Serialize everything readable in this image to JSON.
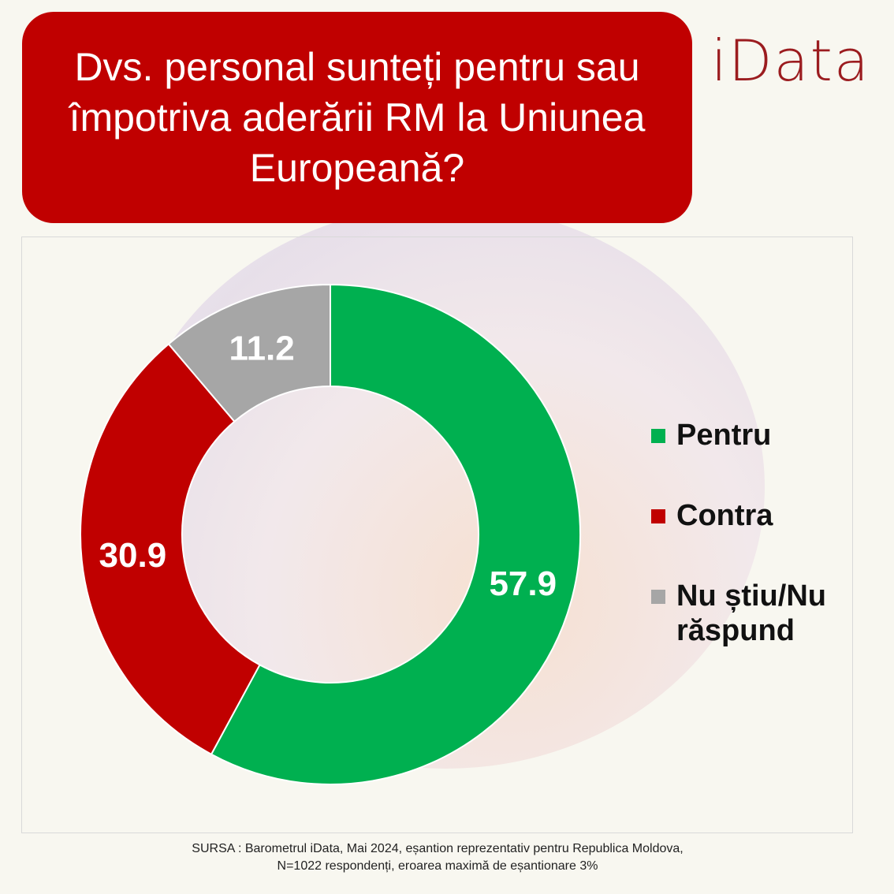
{
  "title": "Dvs. personal sunteți pentru sau împotriva aderării RM la Uniunea Europeană?",
  "logo": "iData",
  "chart_data": {
    "type": "pie",
    "subtype": "donut",
    "title": "Dvs. personal sunteți pentru sau împotriva aderării RM la Uniunea Europeană?",
    "categories": [
      "Pentru",
      "Contra",
      "Nu știu/Nu răspund"
    ],
    "values": [
      57.9,
      30.9,
      11.2
    ],
    "value_labels": [
      "57.9",
      "30.9",
      "11.2"
    ],
    "colors": [
      "#00b050",
      "#c00000",
      "#a6a6a6"
    ],
    "legend_position": "right"
  },
  "source": {
    "line1": "SURSA : Barometrul iData, Mai 2024, eșantion reprezentativ pentru Republica Moldova,",
    "line2": "N=1022 respondenți, eroarea maximă de eșantionare 3%"
  }
}
